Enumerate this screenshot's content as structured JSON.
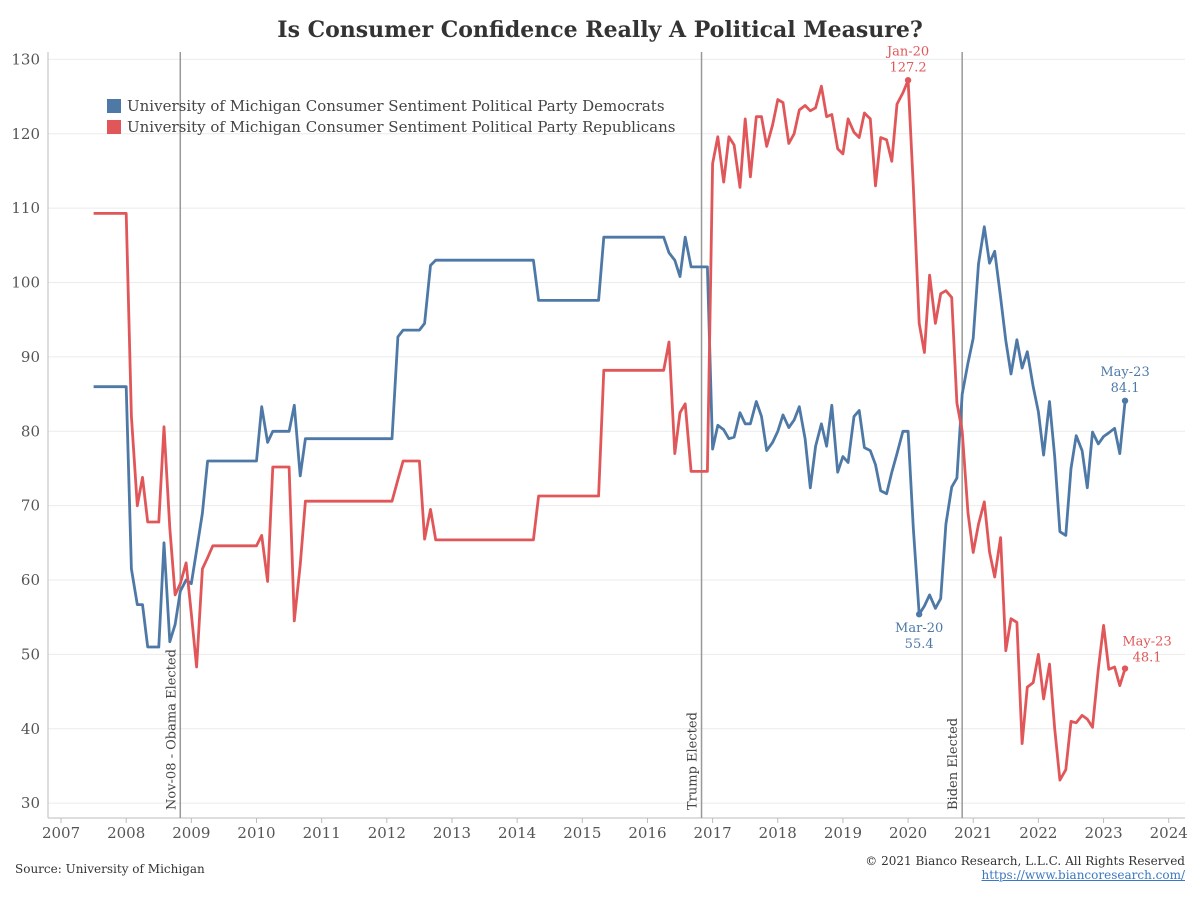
{
  "chart_data": {
    "type": "line",
    "title": "Is Consumer Confidence Really A Political Measure?",
    "xlabel": "",
    "ylabel": "",
    "xlim": [
      2006.8,
      2024.25
    ],
    "ylim": [
      28,
      131
    ],
    "yticks": [
      30,
      40,
      50,
      60,
      70,
      80,
      90,
      100,
      110,
      120,
      130
    ],
    "xticks": [
      2007,
      2008,
      2009,
      2010,
      2011,
      2012,
      2013,
      2014,
      2015,
      2016,
      2017,
      2018,
      2019,
      2020,
      2021,
      2022,
      2023,
      2024
    ],
    "grid": true,
    "legend_position": "top-left",
    "series": [
      {
        "name": "University of Michigan Consumer Sentiment Political Party Democrats",
        "color": "#4e79a7",
        "points": [
          [
            2007.5,
            86
          ],
          [
            2008.0,
            86
          ],
          [
            2008.08,
            61.5
          ],
          [
            2008.17,
            56.7
          ],
          [
            2008.25,
            56.7
          ],
          [
            2008.33,
            51
          ],
          [
            2008.42,
            51
          ],
          [
            2008.5,
            51
          ],
          [
            2008.58,
            65
          ],
          [
            2008.67,
            51.7
          ],
          [
            2008.75,
            54
          ],
          [
            2008.83,
            58.5
          ],
          [
            2008.92,
            60
          ],
          [
            2009.0,
            59.5
          ],
          [
            2009.08,
            64
          ],
          [
            2009.17,
            69
          ],
          [
            2009.25,
            76
          ],
          [
            2009.33,
            76
          ],
          [
            2009.5,
            76
          ],
          [
            2009.75,
            76
          ],
          [
            2010.0,
            76
          ],
          [
            2010.08,
            83.3
          ],
          [
            2010.17,
            78.5
          ],
          [
            2010.25,
            80
          ],
          [
            2010.33,
            80
          ],
          [
            2010.42,
            80
          ],
          [
            2010.5,
            80
          ],
          [
            2010.58,
            83.5
          ],
          [
            2010.67,
            74
          ],
          [
            2010.75,
            79
          ],
          [
            2011.0,
            79
          ],
          [
            2011.5,
            79
          ],
          [
            2012.0,
            79
          ],
          [
            2012.08,
            79
          ],
          [
            2012.17,
            92.7
          ],
          [
            2012.25,
            93.6
          ],
          [
            2012.5,
            93.6
          ],
          [
            2012.58,
            94.5
          ],
          [
            2012.67,
            102.3
          ],
          [
            2012.75,
            103
          ],
          [
            2013.0,
            103
          ],
          [
            2013.5,
            103
          ],
          [
            2014.0,
            103
          ],
          [
            2014.25,
            103
          ],
          [
            2014.33,
            97.6
          ],
          [
            2014.5,
            97.6
          ],
          [
            2015.0,
            97.6
          ],
          [
            2015.25,
            97.6
          ],
          [
            2015.33,
            106.1
          ],
          [
            2015.5,
            106.1
          ],
          [
            2016.0,
            106.1
          ],
          [
            2016.25,
            106.1
          ],
          [
            2016.33,
            104
          ],
          [
            2016.42,
            103
          ],
          [
            2016.5,
            100.8
          ],
          [
            2016.58,
            106.1
          ],
          [
            2016.67,
            102.1
          ],
          [
            2016.75,
            102.1
          ],
          [
            2016.92,
            102.1
          ],
          [
            2017.0,
            77.6
          ],
          [
            2017.08,
            80.8
          ],
          [
            2017.17,
            80.2
          ],
          [
            2017.25,
            79
          ],
          [
            2017.33,
            79.2
          ],
          [
            2017.42,
            82.5
          ],
          [
            2017.5,
            81
          ],
          [
            2017.58,
            81
          ],
          [
            2017.67,
            84
          ],
          [
            2017.75,
            82
          ],
          [
            2017.83,
            77.4
          ],
          [
            2017.92,
            78.5
          ],
          [
            2018.0,
            80
          ],
          [
            2018.08,
            82.2
          ],
          [
            2018.17,
            80.5
          ],
          [
            2018.25,
            81.5
          ],
          [
            2018.33,
            83.3
          ],
          [
            2018.42,
            79
          ],
          [
            2018.5,
            72.4
          ],
          [
            2018.58,
            78
          ],
          [
            2018.67,
            81
          ],
          [
            2018.75,
            78
          ],
          [
            2018.83,
            83.5
          ],
          [
            2018.92,
            74.5
          ],
          [
            2019.0,
            76.6
          ],
          [
            2019.08,
            75.8
          ],
          [
            2019.17,
            82
          ],
          [
            2019.25,
            82.8
          ],
          [
            2019.33,
            77.8
          ],
          [
            2019.42,
            77.4
          ],
          [
            2019.5,
            75.5
          ],
          [
            2019.58,
            72
          ],
          [
            2019.67,
            71.6
          ],
          [
            2019.75,
            74.5
          ],
          [
            2019.83,
            77
          ],
          [
            2019.92,
            80
          ],
          [
            2020.0,
            80
          ],
          [
            2020.08,
            67
          ],
          [
            2020.17,
            55.4
          ],
          [
            2020.25,
            56.5
          ],
          [
            2020.33,
            58
          ],
          [
            2020.42,
            56.2
          ],
          [
            2020.5,
            57.5
          ],
          [
            2020.58,
            67.5
          ],
          [
            2020.67,
            72.5
          ],
          [
            2020.75,
            73.7
          ],
          [
            2020.83,
            85
          ],
          [
            2020.92,
            89.2
          ],
          [
            2021.0,
            92.5
          ],
          [
            2021.08,
            102.5
          ],
          [
            2021.17,
            107.5
          ],
          [
            2021.25,
            102.6
          ],
          [
            2021.33,
            104.2
          ],
          [
            2021.42,
            98
          ],
          [
            2021.5,
            92.2
          ],
          [
            2021.58,
            87.7
          ],
          [
            2021.67,
            92.3
          ],
          [
            2021.75,
            88.5
          ],
          [
            2021.83,
            90.7
          ],
          [
            2021.92,
            86
          ],
          [
            2022.0,
            82.6
          ],
          [
            2022.08,
            76.8
          ],
          [
            2022.17,
            84
          ],
          [
            2022.25,
            76.6
          ],
          [
            2022.33,
            66.5
          ],
          [
            2022.42,
            66
          ],
          [
            2022.5,
            75
          ],
          [
            2022.58,
            79.4
          ],
          [
            2022.67,
            77.4
          ],
          [
            2022.75,
            72.4
          ],
          [
            2022.83,
            79.9
          ],
          [
            2022.92,
            78.3
          ],
          [
            2023.0,
            79.3
          ],
          [
            2023.08,
            79.8
          ],
          [
            2023.17,
            80.4
          ],
          [
            2023.25,
            77
          ],
          [
            2023.33,
            84.1
          ]
        ]
      },
      {
        "name": "University of Michigan Consumer Sentiment Political Party Republicans",
        "color": "#e15759",
        "points": [
          [
            2007.5,
            109.3
          ],
          [
            2008.0,
            109.3
          ],
          [
            2008.08,
            82
          ],
          [
            2008.17,
            70
          ],
          [
            2008.25,
            73.8
          ],
          [
            2008.33,
            67.8
          ],
          [
            2008.42,
            67.8
          ],
          [
            2008.5,
            67.8
          ],
          [
            2008.58,
            80.6
          ],
          [
            2008.67,
            67
          ],
          [
            2008.75,
            58
          ],
          [
            2008.83,
            59.5
          ],
          [
            2008.92,
            62.3
          ],
          [
            2009.0,
            55.5
          ],
          [
            2009.08,
            48.3
          ],
          [
            2009.17,
            61.5
          ],
          [
            2009.25,
            63
          ],
          [
            2009.33,
            64.6
          ],
          [
            2009.5,
            64.6
          ],
          [
            2009.75,
            64.6
          ],
          [
            2010.0,
            64.6
          ],
          [
            2010.08,
            66
          ],
          [
            2010.17,
            59.8
          ],
          [
            2010.25,
            75.2
          ],
          [
            2010.33,
            75.2
          ],
          [
            2010.42,
            75.2
          ],
          [
            2010.5,
            75.2
          ],
          [
            2010.58,
            54.5
          ],
          [
            2010.67,
            62
          ],
          [
            2010.75,
            70.6
          ],
          [
            2011.0,
            70.6
          ],
          [
            2011.5,
            70.6
          ],
          [
            2012.0,
            70.6
          ],
          [
            2012.08,
            70.6
          ],
          [
            2012.17,
            73.5
          ],
          [
            2012.25,
            76
          ],
          [
            2012.5,
            76
          ],
          [
            2012.58,
            65.5
          ],
          [
            2012.67,
            69.5
          ],
          [
            2012.75,
            65.4
          ],
          [
            2013.0,
            65.4
          ],
          [
            2013.5,
            65.4
          ],
          [
            2014.0,
            65.4
          ],
          [
            2014.25,
            65.4
          ],
          [
            2014.33,
            71.3
          ],
          [
            2014.5,
            71.3
          ],
          [
            2015.0,
            71.3
          ],
          [
            2015.25,
            71.3
          ],
          [
            2015.33,
            88.2
          ],
          [
            2015.5,
            88.2
          ],
          [
            2016.0,
            88.2
          ],
          [
            2016.25,
            88.2
          ],
          [
            2016.33,
            92
          ],
          [
            2016.42,
            77
          ],
          [
            2016.5,
            82.5
          ],
          [
            2016.58,
            83.7
          ],
          [
            2016.67,
            74.6
          ],
          [
            2016.75,
            74.6
          ],
          [
            2016.92,
            74.6
          ],
          [
            2017.0,
            116
          ],
          [
            2017.08,
            119.6
          ],
          [
            2017.17,
            113.5
          ],
          [
            2017.25,
            119.6
          ],
          [
            2017.33,
            118.5
          ],
          [
            2017.42,
            112.8
          ],
          [
            2017.5,
            122
          ],
          [
            2017.58,
            114.2
          ],
          [
            2017.67,
            122.3
          ],
          [
            2017.75,
            122.3
          ],
          [
            2017.83,
            118.3
          ],
          [
            2017.92,
            121.2
          ],
          [
            2018.0,
            124.6
          ],
          [
            2018.08,
            124.2
          ],
          [
            2018.17,
            118.7
          ],
          [
            2018.25,
            120
          ],
          [
            2018.33,
            123.2
          ],
          [
            2018.42,
            123.8
          ],
          [
            2018.5,
            123.1
          ],
          [
            2018.58,
            123.5
          ],
          [
            2018.67,
            126.4
          ],
          [
            2018.75,
            122.3
          ],
          [
            2018.83,
            122.6
          ],
          [
            2018.92,
            118
          ],
          [
            2019.0,
            117.3
          ],
          [
            2019.08,
            122
          ],
          [
            2019.17,
            120.2
          ],
          [
            2019.25,
            119.5
          ],
          [
            2019.33,
            122.8
          ],
          [
            2019.42,
            122
          ],
          [
            2019.5,
            113
          ],
          [
            2019.58,
            119.5
          ],
          [
            2019.67,
            119.2
          ],
          [
            2019.75,
            116.3
          ],
          [
            2019.83,
            124
          ],
          [
            2019.92,
            125.5
          ],
          [
            2020.0,
            127.2
          ],
          [
            2020.08,
            113
          ],
          [
            2020.17,
            94.5
          ],
          [
            2020.25,
            90.6
          ],
          [
            2020.33,
            101
          ],
          [
            2020.42,
            94.5
          ],
          [
            2020.5,
            98.5
          ],
          [
            2020.58,
            98.9
          ],
          [
            2020.67,
            98
          ],
          [
            2020.75,
            83.8
          ],
          [
            2020.83,
            80
          ],
          [
            2020.92,
            69
          ],
          [
            2021.0,
            63.7
          ],
          [
            2021.08,
            67.5
          ],
          [
            2021.17,
            70.5
          ],
          [
            2021.25,
            63.8
          ],
          [
            2021.33,
            60.4
          ],
          [
            2021.42,
            65.7
          ],
          [
            2021.5,
            50.5
          ],
          [
            2021.58,
            54.8
          ],
          [
            2021.67,
            54.3
          ],
          [
            2021.75,
            38
          ],
          [
            2021.83,
            45.6
          ],
          [
            2021.92,
            46.2
          ],
          [
            2022.0,
            50
          ],
          [
            2022.08,
            44
          ],
          [
            2022.17,
            48.7
          ],
          [
            2022.25,
            40
          ],
          [
            2022.33,
            33.1
          ],
          [
            2022.42,
            34.5
          ],
          [
            2022.5,
            41
          ],
          [
            2022.58,
            40.8
          ],
          [
            2022.67,
            41.8
          ],
          [
            2022.75,
            41.3
          ],
          [
            2022.83,
            40.2
          ],
          [
            2022.92,
            48
          ],
          [
            2023.0,
            53.9
          ],
          [
            2023.08,
            48
          ],
          [
            2023.17,
            48.3
          ],
          [
            2023.25,
            45.8
          ],
          [
            2023.33,
            48.1
          ]
        ]
      }
    ],
    "events": [
      {
        "label": "Nov-08 - Obama Elected",
        "x": 2008.83
      },
      {
        "label": "Trump Elected",
        "x": 2016.83
      },
      {
        "label": "Biden Elected",
        "x": 2020.83
      }
    ],
    "annotations": [
      {
        "series": 1,
        "x": 2020.0,
        "y": 127.2,
        "label_line1": "Jan-20",
        "label_line2": "127.2",
        "placement": "above",
        "color": "#e15759"
      },
      {
        "series": 0,
        "x": 2020.17,
        "y": 55.4,
        "label_line1": "Mar-20",
        "label_line2": "55.4",
        "placement": "below",
        "color": "#4e79a7"
      },
      {
        "series": 0,
        "x": 2023.33,
        "y": 84.1,
        "label_line1": "May-23",
        "label_line2": "84.1",
        "placement": "above",
        "color": "#4e79a7"
      },
      {
        "series": 1,
        "x": 2023.33,
        "y": 48.1,
        "label_line1": "May-23",
        "label_line2": "48.1",
        "placement": "right-above",
        "color": "#e15759"
      }
    ]
  },
  "footer": {
    "source": "Source: University of Michigan",
    "copyright": "© 2021 Bianco Research, L.L.C. All Rights Reserved",
    "url": "https://www.biancoresearch.com/"
  }
}
